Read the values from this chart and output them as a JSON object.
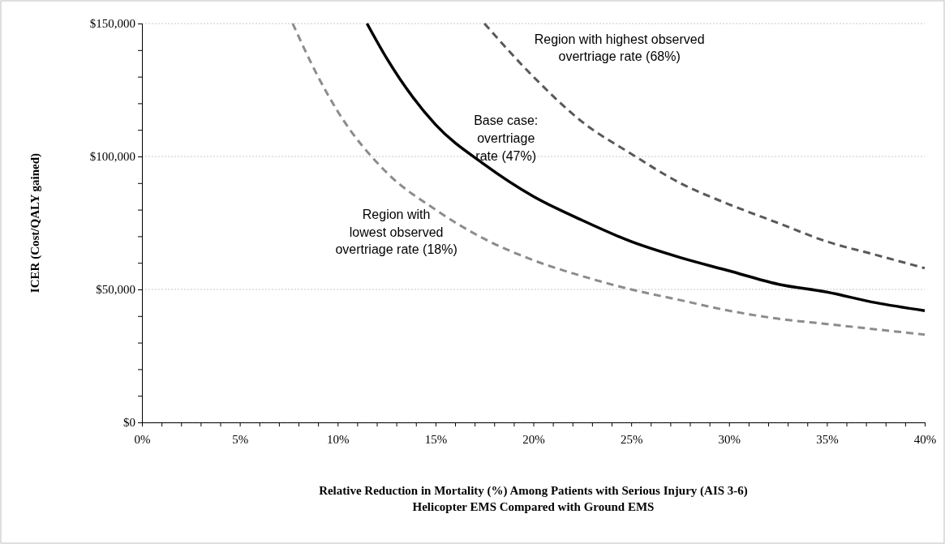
{
  "chart_data": {
    "type": "line",
    "xlabel": "Relative Reduction in Mortality (%) Among Patients with Serious Injury (AIS 3-6)\nHelicopter EMS Compared with Ground EMS",
    "ylabel": "ICER (Cost/QALY gained)",
    "xlim": [
      0,
      40
    ],
    "ylim": [
      0,
      150000
    ],
    "xticks": [
      {
        "value": 0,
        "label": "0%"
      },
      {
        "value": 1,
        "label": null
      },
      {
        "value": 2,
        "label": null
      },
      {
        "value": 3,
        "label": null
      },
      {
        "value": 4,
        "label": null
      },
      {
        "value": 5,
        "label": "5%"
      },
      {
        "value": 6,
        "label": null
      },
      {
        "value": 7,
        "label": null
      },
      {
        "value": 8,
        "label": null
      },
      {
        "value": 9,
        "label": null
      },
      {
        "value": 10,
        "label": "10%"
      },
      {
        "value": 11,
        "label": null
      },
      {
        "value": 12,
        "label": null
      },
      {
        "value": 13,
        "label": null
      },
      {
        "value": 14,
        "label": null
      },
      {
        "value": 15,
        "label": "15%"
      },
      {
        "value": 16,
        "label": null
      },
      {
        "value": 17,
        "label": null
      },
      {
        "value": 18,
        "label": null
      },
      {
        "value": 19,
        "label": null
      },
      {
        "value": 20,
        "label": "20%"
      },
      {
        "value": 21,
        "label": null
      },
      {
        "value": 22,
        "label": null
      },
      {
        "value": 23,
        "label": null
      },
      {
        "value": 24,
        "label": null
      },
      {
        "value": 25,
        "label": "25%"
      },
      {
        "value": 26,
        "label": null
      },
      {
        "value": 27,
        "label": null
      },
      {
        "value": 28,
        "label": null
      },
      {
        "value": 29,
        "label": null
      },
      {
        "value": 30,
        "label": "30%"
      },
      {
        "value": 31,
        "label": null
      },
      {
        "value": 32,
        "label": null
      },
      {
        "value": 33,
        "label": null
      },
      {
        "value": 34,
        "label": null
      },
      {
        "value": 35,
        "label": "35%"
      },
      {
        "value": 36,
        "label": null
      },
      {
        "value": 37,
        "label": null
      },
      {
        "value": 38,
        "label": null
      },
      {
        "value": 39,
        "label": null
      },
      {
        "value": 40,
        "label": "40%"
      }
    ],
    "yticks": [
      {
        "value": 0,
        "label": "$0"
      },
      {
        "value": 10000,
        "label": null
      },
      {
        "value": 20000,
        "label": null
      },
      {
        "value": 30000,
        "label": null
      },
      {
        "value": 40000,
        "label": null
      },
      {
        "value": 50000,
        "label": "$50,000"
      },
      {
        "value": 60000,
        "label": null
      },
      {
        "value": 70000,
        "label": null
      },
      {
        "value": 80000,
        "label": null
      },
      {
        "value": 90000,
        "label": null
      },
      {
        "value": 100000,
        "label": "$100,000"
      },
      {
        "value": 110000,
        "label": null
      },
      {
        "value": 120000,
        "label": null
      },
      {
        "value": 130000,
        "label": null
      },
      {
        "value": 140000,
        "label": null
      },
      {
        "value": 150000,
        "label": "$150,000"
      }
    ],
    "grid": "y",
    "series": [
      {
        "color": "#595959",
        "line_style": "dashed",
        "x": [
          17.5,
          20,
          22.5,
          25,
          27.5,
          30,
          32.5,
          35,
          37.5,
          40
        ],
        "values": [
          150000,
          130000,
          113000,
          101000,
          90000,
          82000,
          75000,
          68000,
          63000,
          58000
        ]
      },
      {
        "color": "#000000",
        "line_style": "solid",
        "x": [
          11.5,
          12.5,
          15,
          17.5,
          20,
          22.5,
          25,
          27.5,
          30,
          32.5,
          35,
          37.5,
          40
        ],
        "values": [
          150000,
          137000,
          112000,
          97000,
          85000,
          76000,
          68000,
          62000,
          57000,
          52000,
          49000,
          45000,
          42000
        ]
      },
      {
        "color": "#8c8c8c",
        "line_style": "dashed",
        "x": [
          7.7,
          9,
          10,
          12.5,
          15,
          17.5,
          20,
          22.5,
          25,
          27.5,
          30,
          32.5,
          35,
          37.5,
          40
        ],
        "values": [
          150000,
          130000,
          117000,
          94000,
          80000,
          69000,
          61000,
          55000,
          50000,
          46000,
          42000,
          39000,
          37000,
          35000,
          33000
        ]
      }
    ],
    "annotations": [
      "Region with highest observed\novertriage rate (68%)",
      "Base case:\novertriage\nrate (47%)",
      "Region with\nlowest observed\novertriage rate (18%)"
    ]
  }
}
